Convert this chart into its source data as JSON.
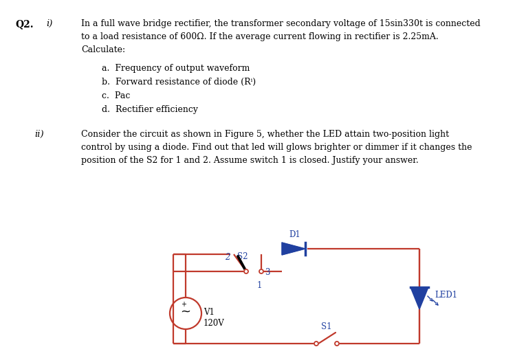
{
  "bg_color": "#ffffff",
  "text_color": "#000000",
  "circuit_color": "#c0392b",
  "blue_color": "#2040a0",
  "figsize": [
    7.49,
    5.21
  ],
  "dpi": 100,
  "lines_i": [
    "In a full wave bridge rectifier, the transformer secondary voltage of 15sin330t is connected",
    "to a load resistance of 600Ω. If the average current flowing in rectifier is 2.25mA.",
    "Calculate:"
  ],
  "items_i": [
    "a.  Frequency of output waveform",
    "b.  Forward resistance of diode (Rⁱ)",
    "c.  Pac",
    "d.  Rectifier efficiency"
  ],
  "lines_ii": [
    "Consider the circuit as shown in Figure 5, whether the LED attain two-position light",
    "control by using a diode. Find out that led will glows brighter or dimmer if it changes the",
    "position of the S2 for 1 and 2. Assume switch 1 is closed. Justify your answer."
  ]
}
